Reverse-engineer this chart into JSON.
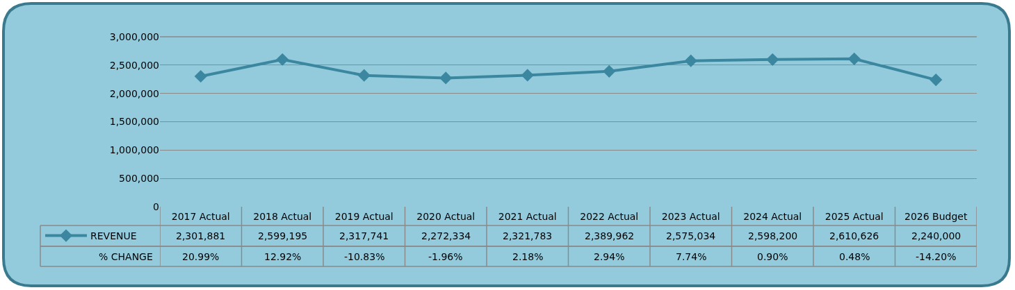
{
  "chart_data": {
    "type": "line",
    "categories": [
      "2017 Actual",
      "2018 Actual",
      "2019 Actual",
      "2020 Actual",
      "2021 Actual",
      "2022 Actual",
      "2023 Actual",
      "2024 Actual",
      "2025 Actual",
      "2026 Budget"
    ],
    "series": [
      {
        "name": "REVENUE",
        "color": "#3b87a0",
        "values": [
          2301881,
          2599195,
          2317741,
          2272334,
          2321783,
          2389962,
          2575034,
          2598200,
          2610626,
          2240000
        ],
        "value_labels": [
          "2,301,881",
          "2,599,195",
          "2,317,741",
          "2,272,334",
          "2,321,783",
          "2,389,962",
          "2,575,034",
          "2,598,200",
          "2,610,626",
          "2,240,000"
        ]
      }
    ],
    "annotations": [
      "% CHANGE",
      "20.99%",
      "12.92%",
      "-10.83%",
      "-1.96%",
      "2.18%",
      "2.94%",
      "7.74%",
      "0.90%",
      "0.48%",
      "-14.20%"
    ],
    "ylim": [
      0,
      3000000
    ],
    "yticks": [
      {
        "value": 0,
        "label": "0"
      },
      {
        "value": 500000,
        "label": "500,000"
      },
      {
        "value": 1000000,
        "label": "1,000,000"
      },
      {
        "value": 1500000,
        "label": "1,500,000"
      },
      {
        "value": 2000000,
        "label": "2,000,000"
      },
      {
        "value": 2500000,
        "label": "2,500,000"
      },
      {
        "value": 3000000,
        "label": "3,000,000"
      }
    ],
    "grid": "y",
    "marker": "diamond",
    "line_style": "solid",
    "legend": "bottom left"
  }
}
